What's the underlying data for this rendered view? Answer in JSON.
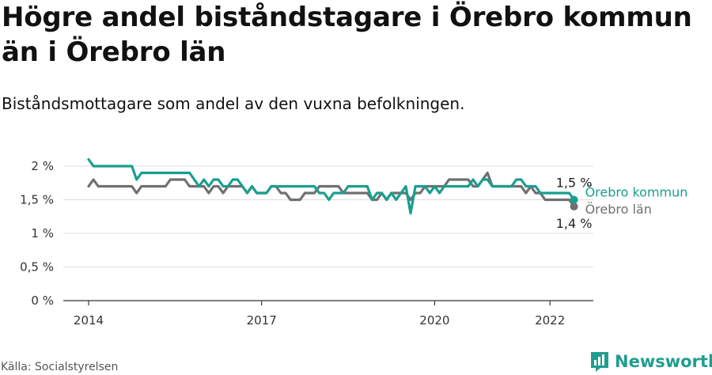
{
  "title": "Högre andel biståndstagare i Örebro kommun än i Örebro län",
  "subtitle": "Biståndsmottagare som andel av den vuxna befolkningen.",
  "source": "Källa: Socialstyrelsen",
  "brand": "Newsworthy",
  "colors": {
    "kommun": "#1a9e8f",
    "lan": "#707070",
    "grid": "#dddddd",
    "axis": "#333333"
  },
  "chart_data": {
    "type": "line",
    "title": "Högre andel biståndstagare i Örebro kommun än i Örebro län",
    "subtitle": "Biståndsmottagare som andel av den vuxna befolkningen.",
    "xlabel": "",
    "ylabel": "",
    "ylim": [
      0,
      2
    ],
    "xlim": [
      "2013-11",
      "2022-09"
    ],
    "yticks": [
      {
        "value": 0,
        "label": "0 %"
      },
      {
        "value": 0.5,
        "label": "0,5 %"
      },
      {
        "value": 1,
        "label": "1 %"
      },
      {
        "value": 1.5,
        "label": "1,5 %"
      },
      {
        "value": 2,
        "label": "2 %"
      }
    ],
    "xticks": [
      {
        "value": "2014-01",
        "label": "2014"
      },
      {
        "value": "2017-01",
        "label": "2017"
      },
      {
        "value": "2020-01",
        "label": "2020"
      },
      {
        "value": "2022-01",
        "label": "2022"
      }
    ],
    "grid": "horizontal",
    "legend": "direct-labels-right",
    "series": [
      {
        "name": "Örebro kommun",
        "color": "#1a9e8f",
        "points": [
          [
            "2014-01",
            2.1
          ],
          [
            "2014-02",
            2.0
          ],
          [
            "2014-10",
            2.0
          ],
          [
            "2014-11",
            1.8
          ],
          [
            "2014-12",
            1.9
          ],
          [
            "2015-10",
            1.9
          ],
          [
            "2015-11",
            1.8
          ],
          [
            "2015-12",
            1.7
          ],
          [
            "2016-01",
            1.8
          ],
          [
            "2016-02",
            1.7
          ],
          [
            "2016-03",
            1.8
          ],
          [
            "2016-04",
            1.8
          ],
          [
            "2016-05",
            1.7
          ],
          [
            "2016-06",
            1.7
          ],
          [
            "2016-07",
            1.8
          ],
          [
            "2016-08",
            1.8
          ],
          [
            "2016-09",
            1.7
          ],
          [
            "2016-10",
            1.6
          ],
          [
            "2016-11",
            1.7
          ],
          [
            "2016-12",
            1.6
          ],
          [
            "2017-02",
            1.6
          ],
          [
            "2017-03",
            1.7
          ],
          [
            "2017-12",
            1.7
          ],
          [
            "2018-01",
            1.6
          ],
          [
            "2018-02",
            1.6
          ],
          [
            "2018-03",
            1.5
          ],
          [
            "2018-04",
            1.6
          ],
          [
            "2018-06",
            1.6
          ],
          [
            "2018-07",
            1.7
          ],
          [
            "2018-11",
            1.7
          ],
          [
            "2018-12",
            1.5
          ],
          [
            "2019-01",
            1.6
          ],
          [
            "2019-02",
            1.6
          ],
          [
            "2019-03",
            1.5
          ],
          [
            "2019-04",
            1.6
          ],
          [
            "2019-05",
            1.5
          ],
          [
            "2019-06",
            1.6
          ],
          [
            "2019-07",
            1.7
          ],
          [
            "2019-08",
            1.3
          ],
          [
            "2019-09",
            1.7
          ],
          [
            "2019-11",
            1.7
          ],
          [
            "2019-12",
            1.6
          ],
          [
            "2020-01",
            1.7
          ],
          [
            "2020-02",
            1.6
          ],
          [
            "2020-03",
            1.7
          ],
          [
            "2020-04",
            1.7
          ],
          [
            "2020-05",
            1.7
          ],
          [
            "2020-08",
            1.7
          ],
          [
            "2020-09",
            1.8
          ],
          [
            "2020-10",
            1.7
          ],
          [
            "2020-11",
            1.8
          ],
          [
            "2020-12",
            1.8
          ],
          [
            "2021-01",
            1.7
          ],
          [
            "2021-05",
            1.7
          ],
          [
            "2021-06",
            1.8
          ],
          [
            "2021-07",
            1.8
          ],
          [
            "2021-08",
            1.7
          ],
          [
            "2021-09",
            1.7
          ],
          [
            "2021-10",
            1.7
          ],
          [
            "2021-11",
            1.6
          ],
          [
            "2022-05",
            1.6
          ],
          [
            "2022-06",
            1.5
          ]
        ],
        "end_label": "1,5 %"
      },
      {
        "name": "Örebro län",
        "color": "#707070",
        "points": [
          [
            "2014-01",
            1.7
          ],
          [
            "2014-02",
            1.8
          ],
          [
            "2014-03",
            1.7
          ],
          [
            "2014-10",
            1.7
          ],
          [
            "2014-11",
            1.6
          ],
          [
            "2014-12",
            1.7
          ],
          [
            "2015-05",
            1.7
          ],
          [
            "2015-06",
            1.8
          ],
          [
            "2015-09",
            1.8
          ],
          [
            "2015-10",
            1.7
          ],
          [
            "2015-11",
            1.7
          ],
          [
            "2015-12",
            1.7
          ],
          [
            "2016-01",
            1.7
          ],
          [
            "2016-02",
            1.6
          ],
          [
            "2016-03",
            1.7
          ],
          [
            "2016-04",
            1.7
          ],
          [
            "2016-05",
            1.6
          ],
          [
            "2016-06",
            1.7
          ],
          [
            "2016-07",
            1.7
          ],
          [
            "2016-08",
            1.7
          ],
          [
            "2016-09",
            1.7
          ],
          [
            "2016-10",
            1.6
          ],
          [
            "2016-11",
            1.7
          ],
          [
            "2016-12",
            1.6
          ],
          [
            "2017-01",
            1.6
          ],
          [
            "2017-02",
            1.6
          ],
          [
            "2017-03",
            1.7
          ],
          [
            "2017-04",
            1.7
          ],
          [
            "2017-05",
            1.6
          ],
          [
            "2017-06",
            1.6
          ],
          [
            "2017-07",
            1.5
          ],
          [
            "2017-08",
            1.5
          ],
          [
            "2017-09",
            1.5
          ],
          [
            "2017-10",
            1.6
          ],
          [
            "2017-11",
            1.6
          ],
          [
            "2017-12",
            1.6
          ],
          [
            "2018-01",
            1.7
          ],
          [
            "2018-02",
            1.7
          ],
          [
            "2018-03",
            1.7
          ],
          [
            "2018-04",
            1.7
          ],
          [
            "2018-05",
            1.7
          ],
          [
            "2018-06",
            1.6
          ],
          [
            "2018-07",
            1.6
          ],
          [
            "2018-08",
            1.6
          ],
          [
            "2018-09",
            1.6
          ],
          [
            "2018-10",
            1.6
          ],
          [
            "2018-11",
            1.6
          ],
          [
            "2018-12",
            1.5
          ],
          [
            "2019-01",
            1.5
          ],
          [
            "2019-02",
            1.6
          ],
          [
            "2019-03",
            1.5
          ],
          [
            "2019-04",
            1.6
          ],
          [
            "2019-05",
            1.6
          ],
          [
            "2019-06",
            1.6
          ],
          [
            "2019-07",
            1.6
          ],
          [
            "2019-08",
            1.5
          ],
          [
            "2019-09",
            1.6
          ],
          [
            "2019-10",
            1.6
          ],
          [
            "2019-11",
            1.7
          ],
          [
            "2019-12",
            1.7
          ],
          [
            "2020-01",
            1.7
          ],
          [
            "2020-02",
            1.7
          ],
          [
            "2020-03",
            1.7
          ],
          [
            "2020-04",
            1.8
          ],
          [
            "2020-05",
            1.8
          ],
          [
            "2020-06",
            1.8
          ],
          [
            "2020-07",
            1.8
          ],
          [
            "2020-08",
            1.8
          ],
          [
            "2020-09",
            1.7
          ],
          [
            "2020-10",
            1.7
          ],
          [
            "2020-11",
            1.8
          ],
          [
            "2020-12",
            1.9
          ],
          [
            "2021-01",
            1.7
          ],
          [
            "2021-02",
            1.7
          ],
          [
            "2021-03",
            1.7
          ],
          [
            "2021-04",
            1.7
          ],
          [
            "2021-05",
            1.7
          ],
          [
            "2021-06",
            1.7
          ],
          [
            "2021-07",
            1.7
          ],
          [
            "2021-08",
            1.6
          ],
          [
            "2021-09",
            1.7
          ],
          [
            "2021-10",
            1.6
          ],
          [
            "2021-11",
            1.6
          ],
          [
            "2021-12",
            1.5
          ],
          [
            "2022-01",
            1.5
          ],
          [
            "2022-02",
            1.5
          ],
          [
            "2022-03",
            1.5
          ],
          [
            "2022-04",
            1.5
          ],
          [
            "2022-05",
            1.5
          ],
          [
            "2022-06",
            1.4
          ]
        ],
        "end_label": "1,4 %"
      }
    ]
  }
}
